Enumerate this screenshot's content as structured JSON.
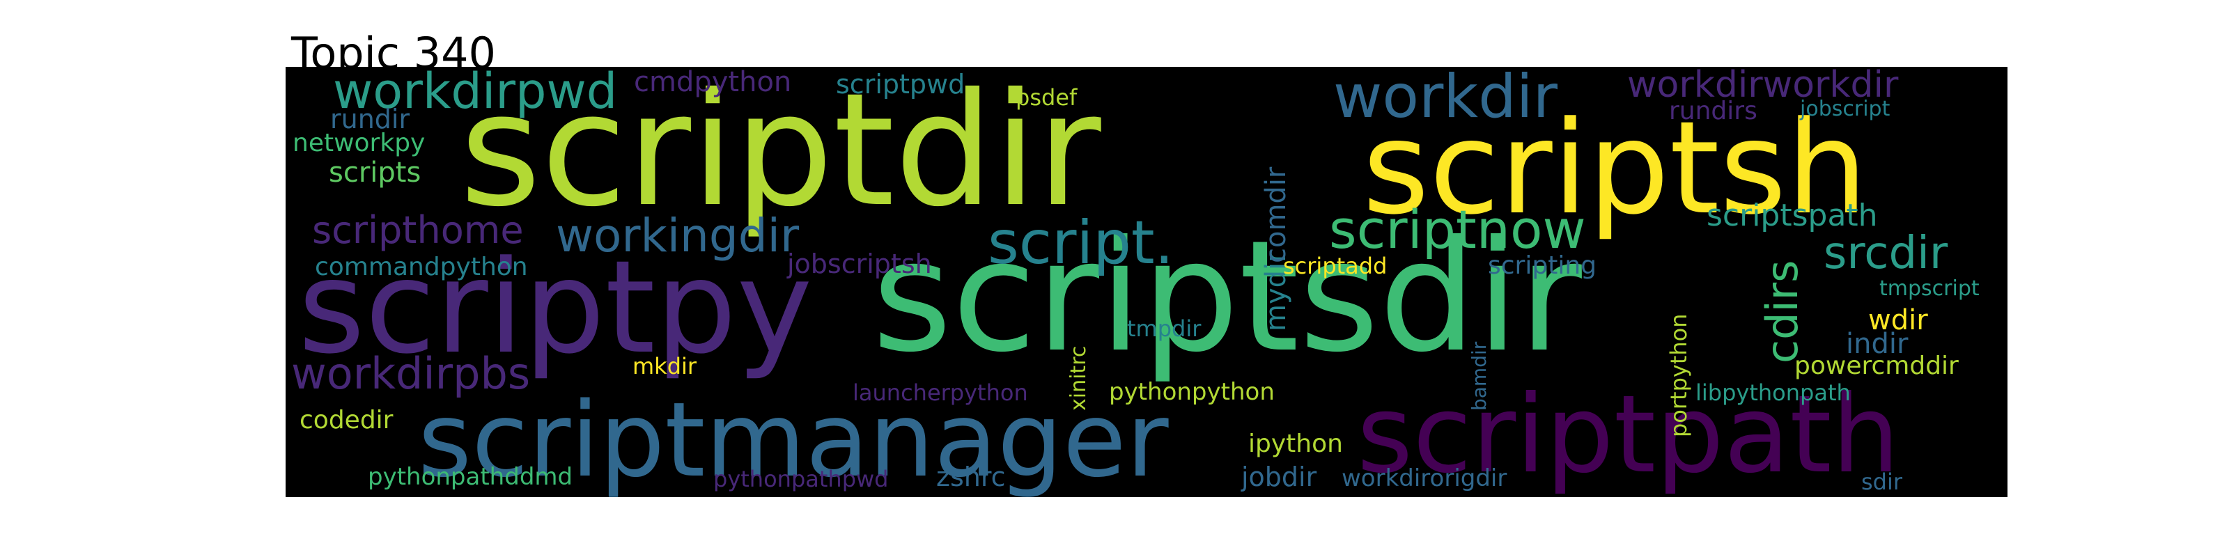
{
  "title": "Topic 340",
  "colors": {
    "c1": "#2b9d8a",
    "c2": "#46317e",
    "c3": "#b2d934",
    "c4": "#3f5d8e",
    "c5": "#fde725",
    "c6": "#3dbc74",
    "c7": "#440154",
    "c8": "#5ec962",
    "c9": "#26828e",
    "c10": "#31688e",
    "c11": "#482878",
    "c12": "#a0da39"
  },
  "words": [
    {
      "text": "scriptdir",
      "color": "c3"
    },
    {
      "text": "scriptsh",
      "color": "c5"
    },
    {
      "text": "scriptpy",
      "color": "c11"
    },
    {
      "text": "scriptsdir",
      "color": "c6"
    },
    {
      "text": "scriptmanager",
      "color": "c10"
    },
    {
      "text": "scriptpath",
      "color": "c7"
    },
    {
      "text": "workdirpwd",
      "color": "c1"
    },
    {
      "text": "cmdpython",
      "color": "c11"
    },
    {
      "text": "scriptpwd",
      "color": "c9"
    },
    {
      "text": "psdef",
      "color": "c3"
    },
    {
      "text": "workdir",
      "color": "c10"
    },
    {
      "text": "workdirworkdir",
      "color": "c11"
    },
    {
      "text": "rundirs",
      "color": "c11"
    },
    {
      "text": "jobscript",
      "color": "c9"
    },
    {
      "text": "rundir",
      "color": "c10"
    },
    {
      "text": "networkpy",
      "color": "c6"
    },
    {
      "text": "scripts",
      "color": "c8"
    },
    {
      "text": "scripthome",
      "color": "c11"
    },
    {
      "text": "workingdir",
      "color": "c10"
    },
    {
      "text": "script.",
      "color": "c9"
    },
    {
      "text": "scriptnow",
      "color": "c6"
    },
    {
      "text": "scriptspath",
      "color": "c1"
    },
    {
      "text": "srcdir",
      "color": "c1"
    },
    {
      "text": "commandpython",
      "color": "c9"
    },
    {
      "text": "jobscriptsh",
      "color": "c11"
    },
    {
      "text": "mydir",
      "color": "c9"
    },
    {
      "text": "comdir",
      "color": "c10"
    },
    {
      "text": "scriptadd",
      "color": "c5"
    },
    {
      "text": "scripting",
      "color": "c10"
    },
    {
      "text": "cdirs",
      "color": "c6"
    },
    {
      "text": "tmpscript",
      "color": "c1"
    },
    {
      "text": "portpython",
      "color": "c3"
    },
    {
      "text": "wdir",
      "color": "c5"
    },
    {
      "text": "indir",
      "color": "c10"
    },
    {
      "text": "xinitrc",
      "color": "c3"
    },
    {
      "text": "tmpdir",
      "color": "c9"
    },
    {
      "text": "bamdir",
      "color": "c10"
    },
    {
      "text": "powercmddir",
      "color": "c3"
    },
    {
      "text": "workdirpbs",
      "color": "c11"
    },
    {
      "text": "mkdir",
      "color": "c5"
    },
    {
      "text": "launcherpython",
      "color": "c11"
    },
    {
      "text": "pythonpython",
      "color": "c3"
    },
    {
      "text": "libpythonpath",
      "color": "c1"
    },
    {
      "text": "codedir",
      "color": "c3"
    },
    {
      "text": "ipython",
      "color": "c3"
    },
    {
      "text": "pythonpathddmd",
      "color": "c6"
    },
    {
      "text": "pythonpathpwd",
      "color": "c11"
    },
    {
      "text": "zshrc",
      "color": "c10"
    },
    {
      "text": "jobdir",
      "color": "c10"
    },
    {
      "text": "workdirorigdir",
      "color": "c10"
    },
    {
      "text": "sdir",
      "color": "c10"
    }
  ]
}
